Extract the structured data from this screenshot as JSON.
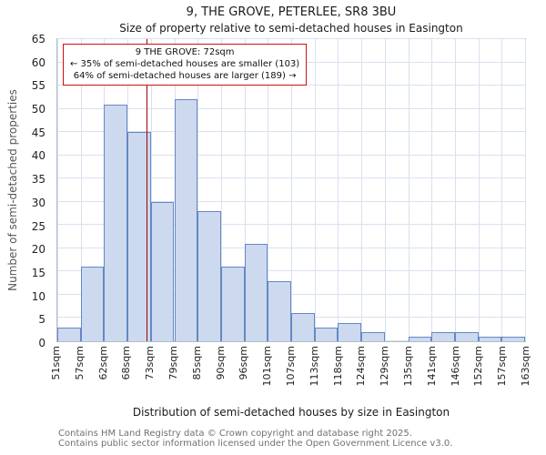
{
  "title": "9, THE GROVE, PETERLEE, SR8 3BU",
  "subtitle": "Size of property relative to semi-detached houses in Easington",
  "annotation": {
    "line1": "9 THE GROVE: 72sqm",
    "line2": "← 35% of semi-detached houses are smaller (103)",
    "line3": "64% of semi-detached houses are larger (189) →"
  },
  "footer": {
    "line1": "Contains HM Land Registry data © Crown copyright and database right 2025.",
    "line2": "Contains public sector information licensed under the Open Government Licence v3.0."
  },
  "chart_data": {
    "type": "bar",
    "title": "9, THE GROVE, PETERLEE, SR8 3BU",
    "subtitle": "Size of property relative to semi-detached houses in Easington",
    "xlabel": "Distribution of semi-detached houses by size in Easington",
    "ylabel": "Number of semi-detached properties",
    "bin_edges": [
      51,
      57,
      62,
      68,
      73,
      79,
      85,
      90,
      96,
      101,
      107,
      113,
      118,
      124,
      129,
      135,
      141,
      146,
      152,
      157,
      163
    ],
    "tick_labels": [
      "51sqm",
      "57sqm",
      "62sqm",
      "68sqm",
      "73sqm",
      "79sqm",
      "85sqm",
      "90sqm",
      "96sqm",
      "101sqm",
      "107sqm",
      "113sqm",
      "118sqm",
      "124sqm",
      "129sqm",
      "135sqm",
      "141sqm",
      "146sqm",
      "152sqm",
      "157sqm",
      "163sqm"
    ],
    "values": [
      3,
      16,
      51,
      45,
      30,
      52,
      28,
      16,
      21,
      13,
      6,
      3,
      4,
      2,
      0,
      1,
      2,
      2,
      1,
      1
    ],
    "ylim": [
      0,
      65
    ],
    "ytick_step": 5,
    "grid": true,
    "legend": "none",
    "marker": {
      "value": 72,
      "label": "9 THE GROVE: 72sqm",
      "smaller_pct": 35,
      "smaller_count": 103,
      "larger_pct": 64,
      "larger_count": 189
    },
    "colors": {
      "bar_fill": "#cdd9ee",
      "bar_border": "#6488c4",
      "marker_line": "#a00000",
      "annotation_border": "#cc1111",
      "grid": "#d9e0ef"
    }
  }
}
